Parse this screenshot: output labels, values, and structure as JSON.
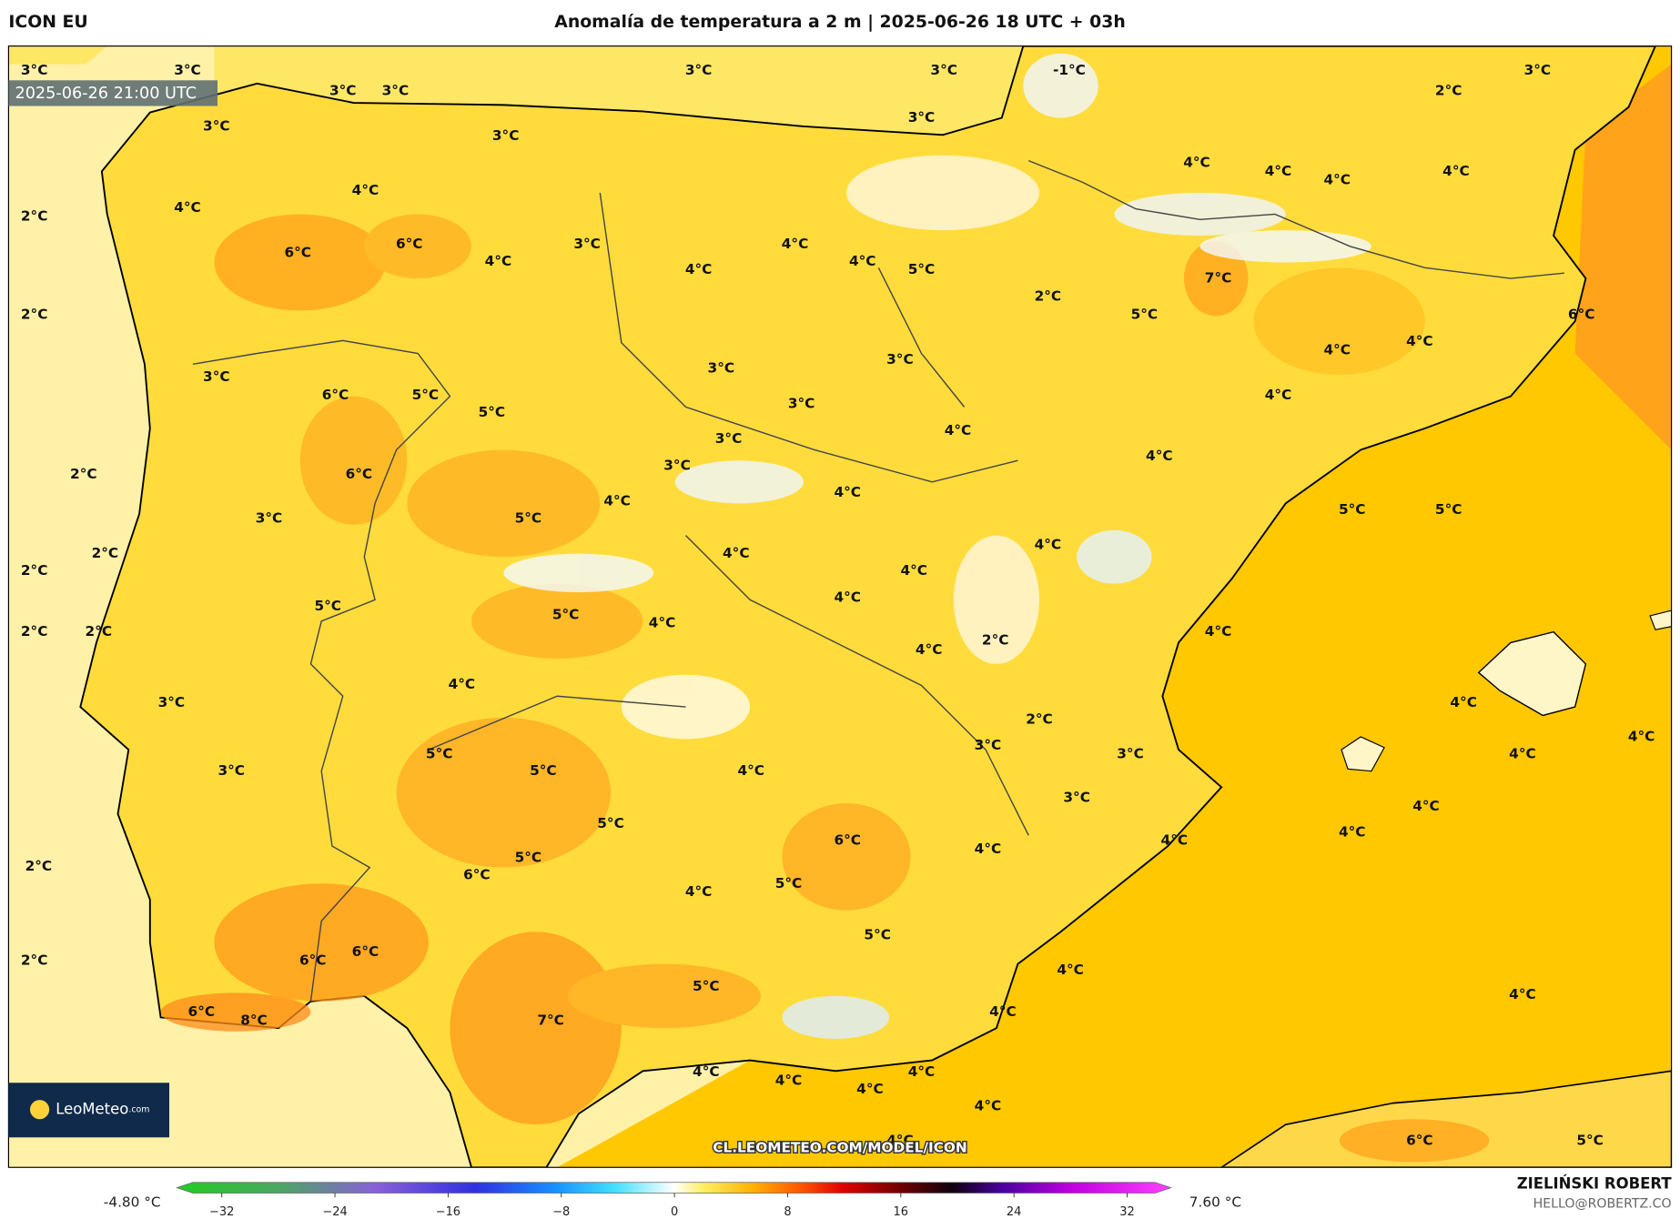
{
  "header": {
    "model": "ICON EU",
    "title": "Anomalía de temperatura a 2 m | 2025-06-26 18 UTC + 03h",
    "valid_time": "2025-06-26 21:00 UTC"
  },
  "map": {
    "labels": [
      "3°C",
      "3°C",
      "3°C",
      "3°C",
      "3°C",
      "3°C",
      "-1°C",
      "3°C",
      "2°C",
      "3°C",
      "3°C",
      "3°C",
      "4°C",
      "4°C",
      "4°C",
      "4°C",
      "4°C",
      "4°C",
      "2°C",
      "6°C",
      "6°C",
      "4°C",
      "3°C",
      "4°C",
      "4°C",
      "4°C",
      "5°C",
      "7°C",
      "2°C",
      "5°C",
      "6°C",
      "2°C",
      "4°C",
      "4°C",
      "3°C",
      "3°C",
      "3°C",
      "6°C",
      "5°C",
      "5°C",
      "3°C",
      "4°C",
      "4°C",
      "3°C",
      "3°C",
      "2°C",
      "6°C",
      "4°C",
      "4°C",
      "4°C",
      "5°C",
      "5°C",
      "3°C",
      "5°C",
      "2°C",
      "4°C",
      "4°C",
      "2°C",
      "4°C",
      "4°C",
      "5°C",
      "5°C",
      "4°C",
      "2°C",
      "2°C",
      "4°C",
      "4°C",
      "2°C",
      "4°C",
      "3°C",
      "4°C",
      "2°C",
      "4°C",
      "3°C",
      "3°C",
      "5°C",
      "4°C",
      "3°C",
      "5°C",
      "4°C",
      "3°C",
      "4°C",
      "5°C",
      "4°C",
      "6°C",
      "4°C",
      "2°C",
      "5°C",
      "4°C",
      "6°C",
      "5°C",
      "4°C",
      "5°C",
      "6°C",
      "6°C",
      "2°C",
      "4°C",
      "5°C",
      "4°C",
      "6°C",
      "8°C",
      "7°C",
      "4°C",
      "4°C",
      "4°C",
      "4°C",
      "4°C",
      "4°C",
      "4°C",
      "6°C",
      "5°C"
    ]
  },
  "colorbar": {
    "min_label": "-4.80 °C",
    "max_label": "7.60 °C",
    "ticks": [
      {
        "value": -32,
        "label": "−32"
      },
      {
        "value": -24,
        "label": "−24"
      },
      {
        "value": -16,
        "label": "−16"
      },
      {
        "value": -8,
        "label": "−8"
      },
      0,
      8,
      16,
      24,
      32
    ]
  },
  "credits": {
    "logo_name": "LeoMeteo",
    "logo_suffix": ".com",
    "url": "CL.LEOMETEO.COM/MODEL/ICON",
    "author": "ZIELIŃSKI ROBERT",
    "email": "HELLO@ROBERTZ.CO"
  }
}
